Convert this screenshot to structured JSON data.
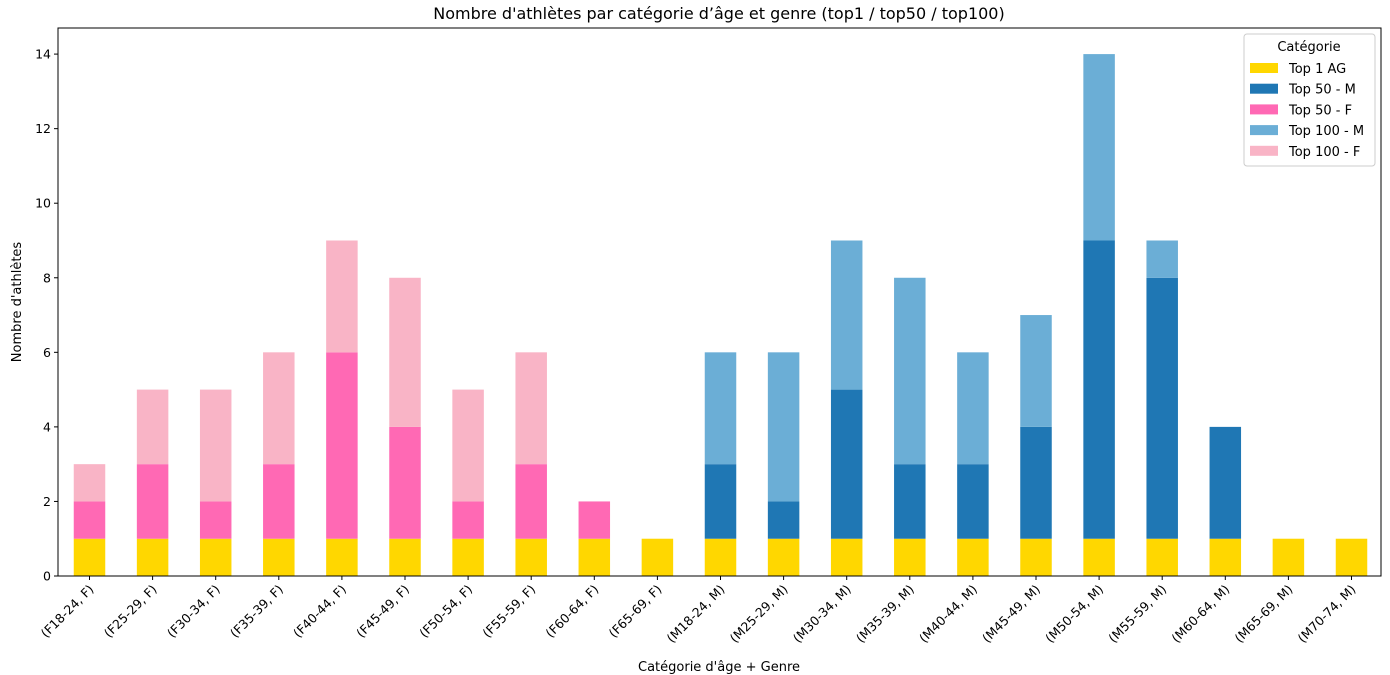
{
  "chart_data": {
    "type": "bar",
    "stacked": true,
    "title": "Nombre d'athlètes par catégorie d’âge et genre (top1 / top50 / top100)",
    "xlabel": "Catégorie d'âge + Genre",
    "ylabel": "Nombre d'athlètes",
    "ylim": [
      0,
      14.7
    ],
    "yticks": [
      0,
      2,
      4,
      6,
      8,
      10,
      12,
      14
    ],
    "grid": false,
    "legend_title": "Catégorie",
    "legend_position": "top-right",
    "categories": [
      "(F18-24, F)",
      "(F25-29, F)",
      "(F30-34, F)",
      "(F35-39, F)",
      "(F40-44, F)",
      "(F45-49, F)",
      "(F50-54, F)",
      "(F55-59, F)",
      "(F60-64, F)",
      "(F65-69, F)",
      "(M18-24, M)",
      "(M25-29, M)",
      "(M30-34, M)",
      "(M35-39, M)",
      "(M40-44, M)",
      "(M45-49, M)",
      "(M50-54, M)",
      "(M55-59, M)",
      "(M60-64, M)",
      "(M65-69, M)",
      "(M70-74, M)"
    ],
    "series": [
      {
        "name": "Top 1 AG",
        "color": "#ffd700",
        "values": [
          1,
          1,
          1,
          1,
          1,
          1,
          1,
          1,
          1,
          1,
          1,
          1,
          1,
          1,
          1,
          1,
          1,
          1,
          1,
          1,
          1
        ]
      },
      {
        "name": "Top 50 - M",
        "color": "#1f77b4",
        "values": [
          0,
          0,
          0,
          0,
          0,
          0,
          0,
          0,
          0,
          0,
          2,
          1,
          4,
          2,
          2,
          3,
          8,
          7,
          3,
          0,
          0
        ]
      },
      {
        "name": "Top 50 - F",
        "color": "#ff69b4",
        "values": [
          1,
          2,
          1,
          2,
          5,
          3,
          1,
          2,
          1,
          0,
          0,
          0,
          0,
          0,
          0,
          0,
          0,
          0,
          0,
          0,
          0
        ]
      },
      {
        "name": "Top 100 - M",
        "color": "#6baed6",
        "values": [
          0,
          0,
          0,
          0,
          0,
          0,
          0,
          0,
          0,
          0,
          3,
          4,
          4,
          5,
          3,
          3,
          5,
          1,
          0,
          0,
          0
        ]
      },
      {
        "name": "Top 100 - F",
        "color": "#f9b4c6",
        "values": [
          1,
          2,
          3,
          3,
          3,
          4,
          3,
          3,
          0,
          0,
          0,
          0,
          0,
          0,
          0,
          0,
          0,
          0,
          0,
          0,
          0
        ]
      }
    ]
  }
}
